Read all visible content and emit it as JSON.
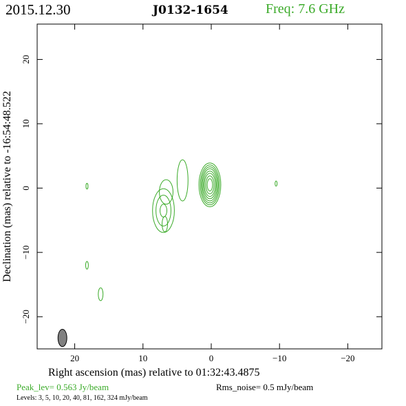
{
  "header": {
    "date": "2015.12.30",
    "source": "J0132-1654",
    "frequency": "Freq: 7.6 GHz"
  },
  "footer": {
    "peak": "Peak_lev=  0.563 Jy/beam",
    "rms": "Rms_noise=   0.5 mJy/beam",
    "levels": "Levels:   3,    5,   10,   20,   40,   81,  162,  324  mJy/beam"
  },
  "colors": {
    "contour": "#3aaa28",
    "frame": "#000000",
    "beam": "#808080",
    "freq_text": "#3aaa28"
  },
  "chart_data": {
    "type": "contour",
    "xlabel": "Right ascension (mas) relative to 01:32:43.4875",
    "ylabel": "Declination (mas) relative to -16:54:48.522",
    "xlim": [
      25.5,
      -25
    ],
    "ylim": [
      -25,
      25.5
    ],
    "xticks": [
      20,
      10,
      0,
      -10,
      -20
    ],
    "xtick_labels": [
      "20",
      "10",
      "0",
      "−10",
      "−20"
    ],
    "yticks": [
      20,
      10,
      0,
      -10,
      -20
    ],
    "ytick_labels": [
      "20",
      "10",
      "0",
      "−10",
      "−20"
    ],
    "contour_levels_mJy": [
      3,
      5,
      10,
      20,
      40,
      81,
      162,
      324
    ],
    "core": {
      "x": 0.2,
      "y": 0.5,
      "components": [
        {
          "rx": 1.6,
          "ry": 3.4,
          "level": 3
        },
        {
          "rx": 1.4,
          "ry": 3.1,
          "level": 5
        },
        {
          "rx": 1.25,
          "ry": 2.8,
          "level": 10
        },
        {
          "rx": 1.1,
          "ry": 2.5,
          "level": 20
        },
        {
          "rx": 0.95,
          "ry": 2.15,
          "level": 40
        },
        {
          "rx": 0.8,
          "ry": 1.8,
          "level": 81
        },
        {
          "rx": 0.6,
          "ry": 1.4,
          "level": 162
        },
        {
          "rx": 0.4,
          "ry": 0.95,
          "level": 324
        }
      ]
    },
    "jet_components": [
      {
        "x": 4.2,
        "y": 1.2,
        "rx": 0.8,
        "ry": 3.2
      },
      {
        "x": 6.6,
        "y": -0.6,
        "rx": 1.0,
        "ry": 1.9
      },
      {
        "x": 7.0,
        "y": -3.5,
        "rx": 1.6,
        "ry": 3.4
      },
      {
        "x": 7.0,
        "y": -3.5,
        "rx": 1.1,
        "ry": 2.4
      },
      {
        "x": 7.0,
        "y": -3.5,
        "rx": 0.5,
        "ry": 1.0
      },
      {
        "x": 6.8,
        "y": -5.6,
        "rx": 0.4,
        "ry": 1.2
      }
    ],
    "noise_blobs": [
      {
        "x": 18.2,
        "y": 0.3,
        "rx": 0.15,
        "ry": 0.45
      },
      {
        "x": 18.2,
        "y": -12.0,
        "rx": 0.2,
        "ry": 0.6
      },
      {
        "x": 16.2,
        "y": -16.5,
        "rx": 0.35,
        "ry": 1.0
      },
      {
        "x": -9.5,
        "y": 0.7,
        "rx": 0.15,
        "ry": 0.4
      }
    ],
    "beam": {
      "x": 21.8,
      "y": -23.3,
      "major": 2.7,
      "minor": 1.3,
      "pa_deg": 0
    }
  }
}
